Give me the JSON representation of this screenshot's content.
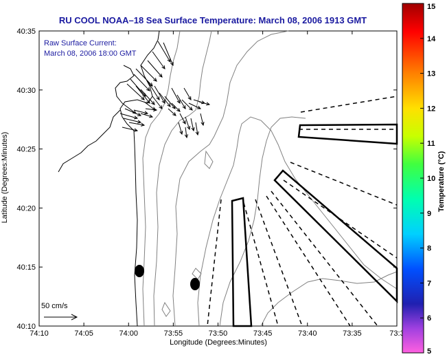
{
  "title": "RU COOL  NOAA–18  Sea Surface Temperature:  March 08, 2006 1913 GMT",
  "legend": {
    "line1": "Raw Surface Current:",
    "line2": "March 08, 2006 18:00 GMT"
  },
  "scale_label": "50 cm/s",
  "axes": {
    "xlabel": "Longitude (Degrees:Minutes)",
    "ylabel": "Latitude (Degrees:Minutes)",
    "xticks": [
      "74:10",
      "74:05",
      "74:00",
      "73:55",
      "73:50",
      "73:45",
      "73:40",
      "73:35",
      "73:3"
    ],
    "yticks": [
      "40:35",
      "40:30",
      "40:25",
      "40:20",
      "40:15",
      "40:10"
    ]
  },
  "colorbar": {
    "label": "Temperature (°C)",
    "ticks": [
      "15",
      "14",
      "13",
      "12",
      "11",
      "10",
      "9",
      "8",
      "7",
      "6",
      "5"
    ],
    "colors": [
      "#b00000",
      "#ff0000",
      "#ff6a00",
      "#ffd000",
      "#e6ff00",
      "#7cff00",
      "#00ff90",
      "#00e0ff",
      "#0070ff",
      "#2020c0",
      "#9040d0",
      "#ff40d0"
    ]
  }
}
